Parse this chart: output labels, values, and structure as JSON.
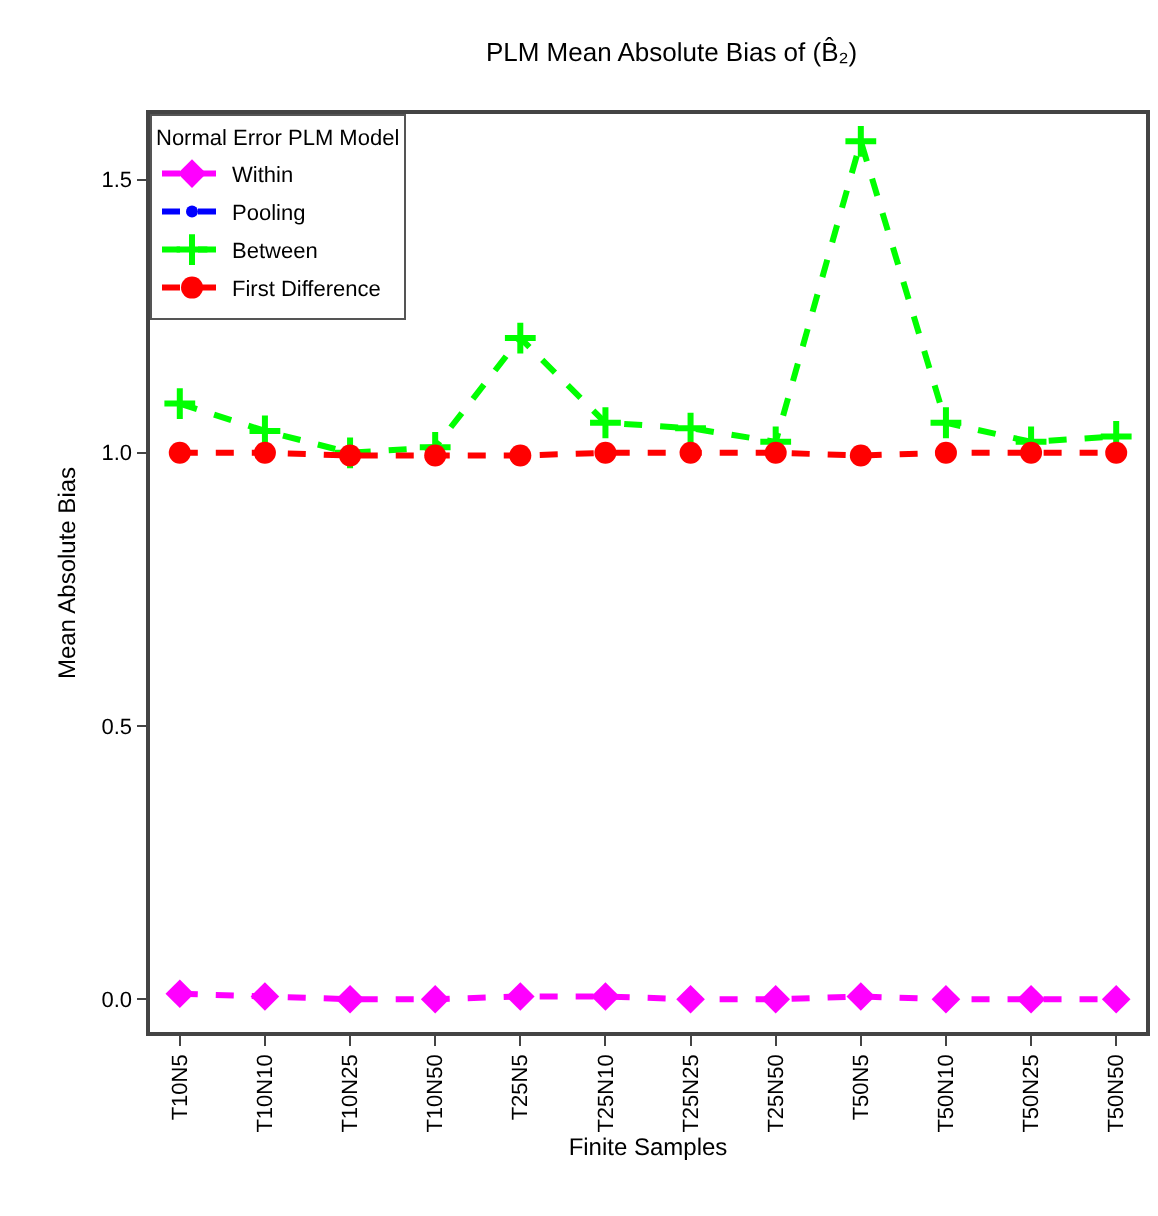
{
  "chart_data": {
    "type": "line",
    "title": "PLM Mean Absolute Bias of (B̂₂)",
    "xlabel": "Finite Samples",
    "ylabel": "Mean Absolute Bias",
    "legend_title": "Normal Error PLM Model",
    "categories": [
      "T10N5",
      "T10N10",
      "T10N25",
      "T10N50",
      "T25N5",
      "T25N10",
      "T25N25",
      "T25N50",
      "T50N5",
      "T50N10",
      "T50N25",
      "T50N50"
    ],
    "series": [
      {
        "name": "Within",
        "color": "#ff00ff",
        "marker": "diamond",
        "values": [
          0.01,
          0.005,
          0,
          0,
          0.005,
          0.005,
          0,
          0,
          0.005,
          0,
          0,
          0
        ]
      },
      {
        "name": "Pooling",
        "color": "#0000ff",
        "marker": "circle",
        "values": [
          null,
          null,
          null,
          null,
          null,
          null,
          null,
          null,
          null,
          null,
          null,
          null
        ]
      },
      {
        "name": "Between",
        "color": "#00ff00",
        "marker": "cross",
        "values": [
          1.09,
          1.04,
          1.0,
          1.01,
          1.21,
          1.055,
          1.045,
          1.02,
          1.57,
          1.055,
          1.02,
          1.03
        ]
      },
      {
        "name": "First Difference",
        "color": "#ff0000",
        "marker": "circle",
        "values": [
          1.0,
          1.0,
          0.995,
          0.995,
          0.995,
          1.0,
          1.0,
          1.0,
          0.995,
          1.0,
          1.0,
          1.0
        ]
      }
    ],
    "ylim": [
      -0.06,
      1.62
    ],
    "yticks": [
      {
        "value": 0,
        "label": "0.0"
      },
      {
        "value": 0.5,
        "label": "0.5"
      },
      {
        "value": 1,
        "label": "1.0"
      },
      {
        "value": 1.5,
        "label": "1.5"
      }
    ],
    "grid": false,
    "legend": "top left",
    "line_style": "dashed"
  }
}
